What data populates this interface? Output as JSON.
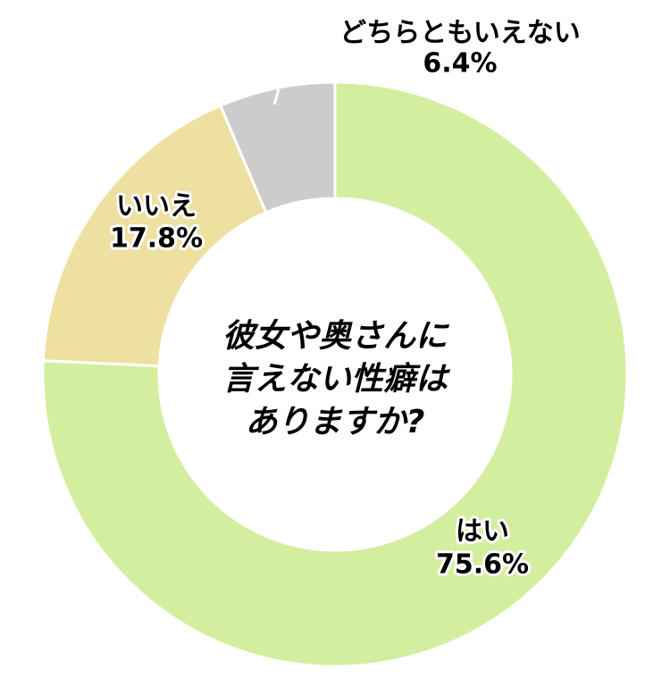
{
  "chart_data": {
    "type": "donut",
    "title": [
      "彼女や奥さんに",
      "言えない性癖は",
      "ありますか?"
    ],
    "categories": [
      "はい",
      "いいえ",
      "どちらともいえない"
    ],
    "values": [
      75.6,
      17.8,
      6.4
    ],
    "value_labels": [
      "75.6%",
      "17.8%",
      "6.4%"
    ],
    "colors": [
      "#d4ee9f",
      "#ede0a0",
      "#cccccc"
    ]
  }
}
